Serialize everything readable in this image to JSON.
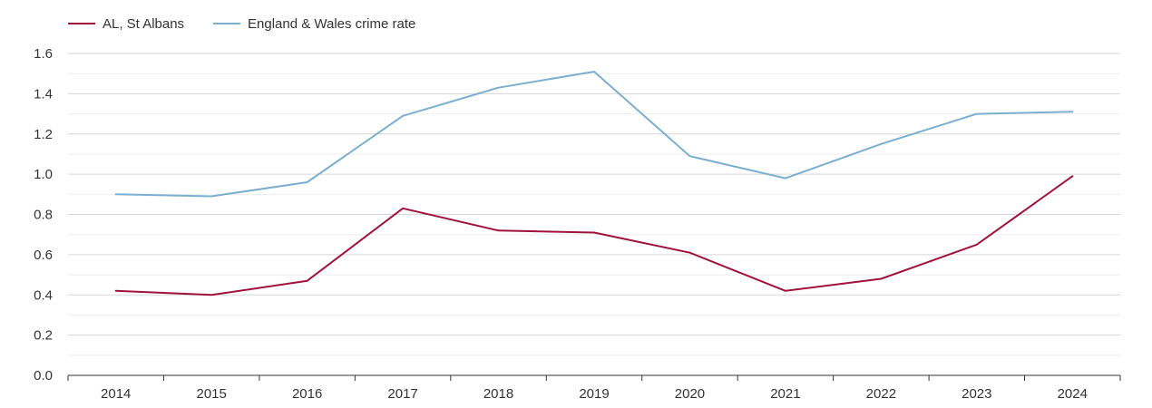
{
  "chart_data": {
    "type": "line",
    "title": "",
    "xlabel": "",
    "ylabel": "",
    "categories": [
      "2014",
      "2015",
      "2016",
      "2017",
      "2018",
      "2019",
      "2020",
      "2021",
      "2022",
      "2023",
      "2024"
    ],
    "ylim": [
      0,
      1.6
    ],
    "yticks": [
      "0.0",
      "0.2",
      "0.4",
      "0.6",
      "0.8",
      "1.0",
      "1.2",
      "1.4",
      "1.6"
    ],
    "grid": true,
    "legend_position": "top-left",
    "series": [
      {
        "name": "AL, St Albans",
        "color": "#a0123a",
        "values": [
          0.42,
          0.4,
          0.47,
          0.83,
          0.72,
          0.71,
          0.61,
          0.42,
          0.48,
          0.65,
          0.99
        ]
      },
      {
        "name": "England & Wales crime rate",
        "color": "#7bafd0",
        "values": [
          0.9,
          0.89,
          0.96,
          1.29,
          1.43,
          1.51,
          1.09,
          0.98,
          1.15,
          1.3,
          1.31
        ]
      }
    ]
  }
}
